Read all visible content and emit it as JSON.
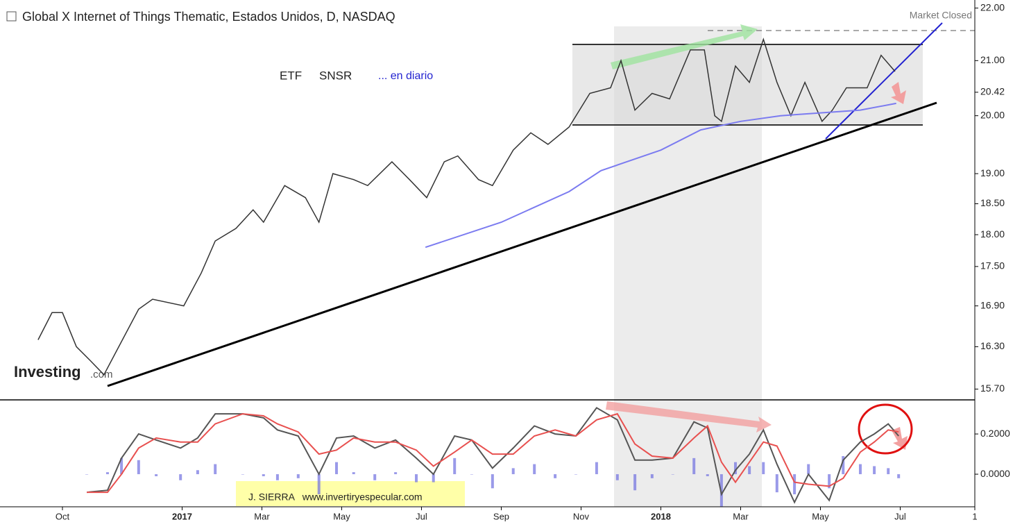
{
  "chart_data": [
    {
      "type": "line",
      "title": "Global X Internet of Things Thematic, Estados Unidos, D, NASDAQ",
      "status": "Market Closed",
      "watermark": "Investing",
      "watermark_suffix": ".com",
      "annotations": [
        "ETF",
        "SNSR",
        "... en diario"
      ],
      "log_scale": true,
      "xlim": [
        -1.565,
        22.87
      ],
      "ylim": [
        15.56,
        22.09
      ],
      "yticks": [
        {
          "value": 15.7,
          "label": "15.70"
        },
        {
          "value": 16.3,
          "label": "16.30"
        },
        {
          "value": 16.9,
          "label": "16.90"
        },
        {
          "value": 17.5,
          "label": "17.50"
        },
        {
          "value": 18,
          "label": "18.00"
        },
        {
          "value": 18.5,
          "label": "18.50"
        },
        {
          "value": 19,
          "label": "19.00"
        },
        {
          "value": 20,
          "label": "20.00"
        },
        20.42,
        {
          "value": 21,
          "label": "21.00"
        },
        {
          "value": 22,
          "label": "22.00"
        }
      ],
      "series": [
        {
          "color": "#333333",
          "x": [
            -0.61,
            -0.26,
            0,
            0.35,
            0.7,
            1.04,
            1.91,
            2.26,
            3.04,
            3.48,
            3.83,
            4.35,
            4.78,
            5.04,
            5.57,
            6.09,
            6.43,
            6.78,
            7.3,
            7.65,
            8.26,
            8.7,
            9.13,
            9.57,
            9.91,
            10.43,
            10.78,
            11.3,
            11.74,
            12.17,
            12.7,
            13.22,
            13.74,
            14.0,
            14.35,
            14.78,
            15.22,
            15.74,
            16.09,
            16.35,
            16.52,
            16.87,
            17.22,
            17.57,
            17.91,
            18.26,
            18.61,
            19.04,
            19.3,
            19.65,
            20.17,
            20.52,
            20.87
          ],
          "values": [
            16.4,
            16.8,
            16.8,
            16.3,
            16.1,
            15.9,
            16.85,
            17.0,
            16.9,
            17.4,
            17.9,
            18.1,
            18.4,
            18.2,
            18.8,
            18.6,
            18.2,
            19.0,
            18.9,
            18.8,
            19.2,
            18.9,
            18.6,
            19.2,
            19.3,
            18.9,
            18.8,
            19.4,
            19.7,
            19.5,
            19.8,
            20.4,
            20.5,
            21.0,
            20.1,
            20.4,
            20.3,
            21.2,
            21.2,
            20.0,
            19.9,
            20.9,
            20.6,
            21.4,
            20.6,
            20.0,
            20.6,
            19.9,
            20.1,
            20.5,
            20.5,
            21.1,
            20.8
          ]
        },
        {
          "color": "#7b7bf0",
          "x": [
            9.1,
            11,
            12.7,
            13.5,
            15,
            16,
            17,
            18,
            19,
            20,
            20.9
          ],
          "values": [
            17.8,
            18.2,
            18.7,
            19.05,
            19.4,
            19.75,
            19.9,
            20.0,
            20.05,
            20.1,
            20.22
          ]
        }
      ]
    },
    {
      "type": "line",
      "credit": "J. SIERRA   www.invertiryespecular.com",
      "xlim": [
        -1.565,
        22.87
      ],
      "ylim": [
        -0.162,
        0.366
      ],
      "xticks": [
        {
          "value": 0,
          "label": "Oct"
        },
        {
          "value": 3,
          "label": "2017"
        },
        {
          "value": 5,
          "label": "Mar"
        },
        {
          "value": 7,
          "label": "May"
        },
        {
          "value": 9,
          "label": "Jul"
        },
        {
          "value": 11,
          "label": "Sep"
        },
        {
          "value": 13,
          "label": "Nov"
        },
        {
          "value": 15,
          "label": "2018"
        },
        {
          "value": 17,
          "label": "Mar"
        },
        {
          "value": 19,
          "label": "May"
        },
        {
          "value": 21,
          "label": "Jul"
        },
        {
          "value": 22.87,
          "label": "1"
        }
      ],
      "yticks": [
        {
          "value": 0.2,
          "label": "0.2000"
        },
        {
          "value": 0,
          "label": "0.0000"
        }
      ],
      "x": [
        0.61,
        1.13,
        1.48,
        1.91,
        2.35,
        2.96,
        3.39,
        3.83,
        4.52,
        5.04,
        5.39,
        5.91,
        6.43,
        6.87,
        7.3,
        7.83,
        8.35,
        8.87,
        9.3,
        9.83,
        10.26,
        10.78,
        11.3,
        11.83,
        12.35,
        12.87,
        13.39,
        13.91,
        14.35,
        14.78,
        15.3,
        15.83,
        16.17,
        16.52,
        16.87,
        17.22,
        17.57,
        17.91,
        18.35,
        18.7,
        19.22,
        19.57,
        20.0,
        20.35,
        20.7,
        20.96
      ],
      "series": [
        {
          "type": "bar",
          "color": "#6f6fe0",
          "values": [
            0,
            0.01,
            0.08,
            0.07,
            -0.01,
            -0.03,
            0.02,
            0.05,
            0,
            -0.01,
            -0.03,
            -0.02,
            -0.1,
            0.06,
            0.01,
            -0.03,
            0.01,
            -0.04,
            -0.04,
            0.08,
            0,
            -0.07,
            0.03,
            0.05,
            -0.02,
            0,
            0.06,
            -0.03,
            -0.08,
            -0.02,
            0,
            0.08,
            -0.01,
            -0.16,
            0.06,
            0.04,
            0.06,
            -0.09,
            -0.1,
            0.05,
            -0.07,
            0.09,
            0.05,
            0.04,
            0.03,
            -0.02
          ]
        },
        {
          "color": "#555555",
          "values": [
            -0.09,
            -0.08,
            0.08,
            0.2,
            0.17,
            0.13,
            0.18,
            0.3,
            0.3,
            0.28,
            0.22,
            0.19,
            0.0,
            0.18,
            0.19,
            0.13,
            0.17,
            0.08,
            0.0,
            0.19,
            0.17,
            0.03,
            0.13,
            0.24,
            0.2,
            0.19,
            0.33,
            0.27,
            0.07,
            0.07,
            0.08,
            0.26,
            0.23,
            -0.1,
            0.02,
            0.1,
            0.22,
            0.05,
            -0.14,
            0.0,
            -0.13,
            0.07,
            0.16,
            0.2,
            0.25,
            0.19
          ]
        },
        {
          "color": "#e8504f",
          "values": [
            -0.09,
            -0.09,
            0.0,
            0.13,
            0.18,
            0.16,
            0.16,
            0.25,
            0.3,
            0.29,
            0.25,
            0.21,
            0.1,
            0.12,
            0.18,
            0.16,
            0.16,
            0.12,
            0.04,
            0.11,
            0.17,
            0.1,
            0.1,
            0.19,
            0.22,
            0.19,
            0.27,
            0.3,
            0.15,
            0.09,
            0.08,
            0.18,
            0.24,
            0.06,
            -0.04,
            0.06,
            0.16,
            0.14,
            -0.04,
            -0.05,
            -0.06,
            -0.02,
            0.11,
            0.16,
            0.22,
            0.21
          ]
        }
      ]
    }
  ]
}
